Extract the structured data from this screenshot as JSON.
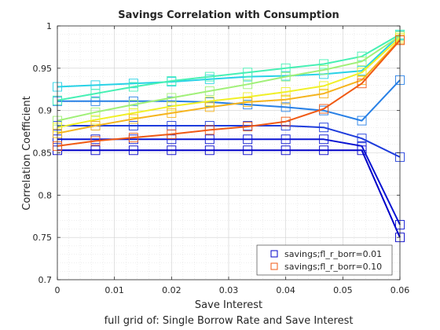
{
  "chart_data": {
    "type": "line",
    "title": "Savings Correlation with Consumption",
    "xlabel": "Save Interest",
    "ylabel": "Correlation Coefficient",
    "subtitle": "full grid of: Single Borrow Rate and Save Interest",
    "xlim": [
      0,
      0.06
    ],
    "ylim": [
      0.7,
      1.0
    ],
    "xticks": [
      "0",
      "0.01",
      "0.02",
      "0.03",
      "0.04",
      "0.05",
      "0.06"
    ],
    "yticks": [
      "0.7",
      "0.75",
      "0.8",
      "0.85",
      "0.9",
      "0.95",
      "1"
    ],
    "grid": true,
    "minor_grid": true,
    "legend_position": "bottom-right",
    "x": [
      0,
      0.00667,
      0.01333,
      0.02,
      0.02667,
      0.03333,
      0.04,
      0.04667,
      0.05333,
      0.06
    ],
    "series": [
      {
        "name": "savings;fl_r_borr=0.01",
        "color": "#0000c8",
        "marker": "square",
        "values": [
          0.853,
          0.853,
          0.853,
          0.853,
          0.853,
          0.853,
          0.853,
          0.853,
          0.853,
          0.75
        ]
      },
      {
        "color": "#0a14d2",
        "marker": "square",
        "values": [
          0.866,
          0.866,
          0.866,
          0.866,
          0.866,
          0.866,
          0.866,
          0.866,
          0.858,
          0.765
        ]
      },
      {
        "color": "#1e3cdc",
        "marker": "square",
        "values": [
          0.882,
          0.882,
          0.882,
          0.882,
          0.882,
          0.882,
          0.882,
          0.88,
          0.867,
          0.845
        ]
      },
      {
        "color": "#2880e6",
        "marker": "square",
        "values": [
          0.911,
          0.911,
          0.911,
          0.911,
          0.91,
          0.907,
          0.904,
          0.9,
          0.888,
          0.936
        ]
      },
      {
        "color": "#28d2e6",
        "marker": "square",
        "values": [
          0.928,
          0.93,
          0.932,
          0.934,
          0.937,
          0.94,
          0.941,
          0.943,
          0.947,
          0.989
        ]
      },
      {
        "color": "#46f0b4",
        "marker": "square",
        "values": [
          0.912,
          0.92,
          0.928,
          0.935,
          0.94,
          0.945,
          0.95,
          0.955,
          0.964,
          0.99
        ]
      },
      {
        "color": "#a0f078",
        "marker": "square",
        "values": [
          0.888,
          0.898,
          0.907,
          0.915,
          0.923,
          0.931,
          0.94,
          0.948,
          0.958,
          0.988
        ]
      },
      {
        "color": "#f0f028",
        "marker": "square",
        "values": [
          0.88,
          0.889,
          0.897,
          0.905,
          0.911,
          0.916,
          0.922,
          0.929,
          0.945,
          0.986
        ]
      },
      {
        "color": "#f5b41e",
        "marker": "square",
        "values": [
          0.873,
          0.882,
          0.89,
          0.897,
          0.904,
          0.91,
          0.913,
          0.92,
          0.936,
          0.984
        ]
      },
      {
        "name": "savings;fl_r_borr=0.10",
        "color": "#f05a14",
        "marker": "square",
        "values": [
          0.858,
          0.864,
          0.868,
          0.872,
          0.877,
          0.881,
          0.887,
          0.902,
          0.932,
          0.983
        ]
      }
    ]
  }
}
